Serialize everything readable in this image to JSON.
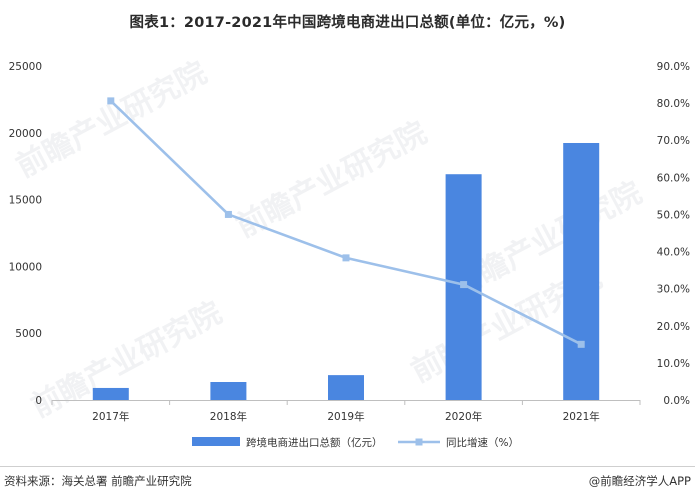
{
  "title": "图表1：2017-2021年中国跨境电商进出口总额(单位：亿元，%)",
  "source": "资料来源：海关总署 前瞻产业研究院",
  "credit": "@前瞻经济学人APP",
  "watermark": "前瞻产业研究院",
  "colors": {
    "bar": "#4a86e0",
    "line": "#9dc0ea",
    "axis": "#bfbfbf",
    "text": "#333333"
  },
  "chart_data": {
    "type": "bar",
    "categories": [
      "2017年",
      "2018年",
      "2019年",
      "2020年",
      "2021年"
    ],
    "series": [
      {
        "name": "跨境电商进出口总额（亿元）",
        "type": "bar",
        "axis": "left",
        "values": [
          902,
          1347,
          1862,
          16900,
          19237
        ]
      },
      {
        "name": "同比增速（%）",
        "type": "line",
        "axis": "right",
        "values": [
          80.6,
          50.0,
          38.3,
          31.1,
          15.0
        ]
      }
    ],
    "y_left": {
      "min": 0,
      "max": 25000,
      "ticks": [
        "0",
        "5000",
        "10000",
        "15000",
        "20000",
        "25000"
      ]
    },
    "y_right": {
      "min": 0,
      "max": 90,
      "ticks": [
        "0.0%",
        "10.0%",
        "20.0%",
        "30.0%",
        "40.0%",
        "50.0%",
        "60.0%",
        "70.0%",
        "80.0%",
        "90.0%"
      ]
    },
    "legend": {
      "position": "bottom"
    },
    "grid": false
  }
}
